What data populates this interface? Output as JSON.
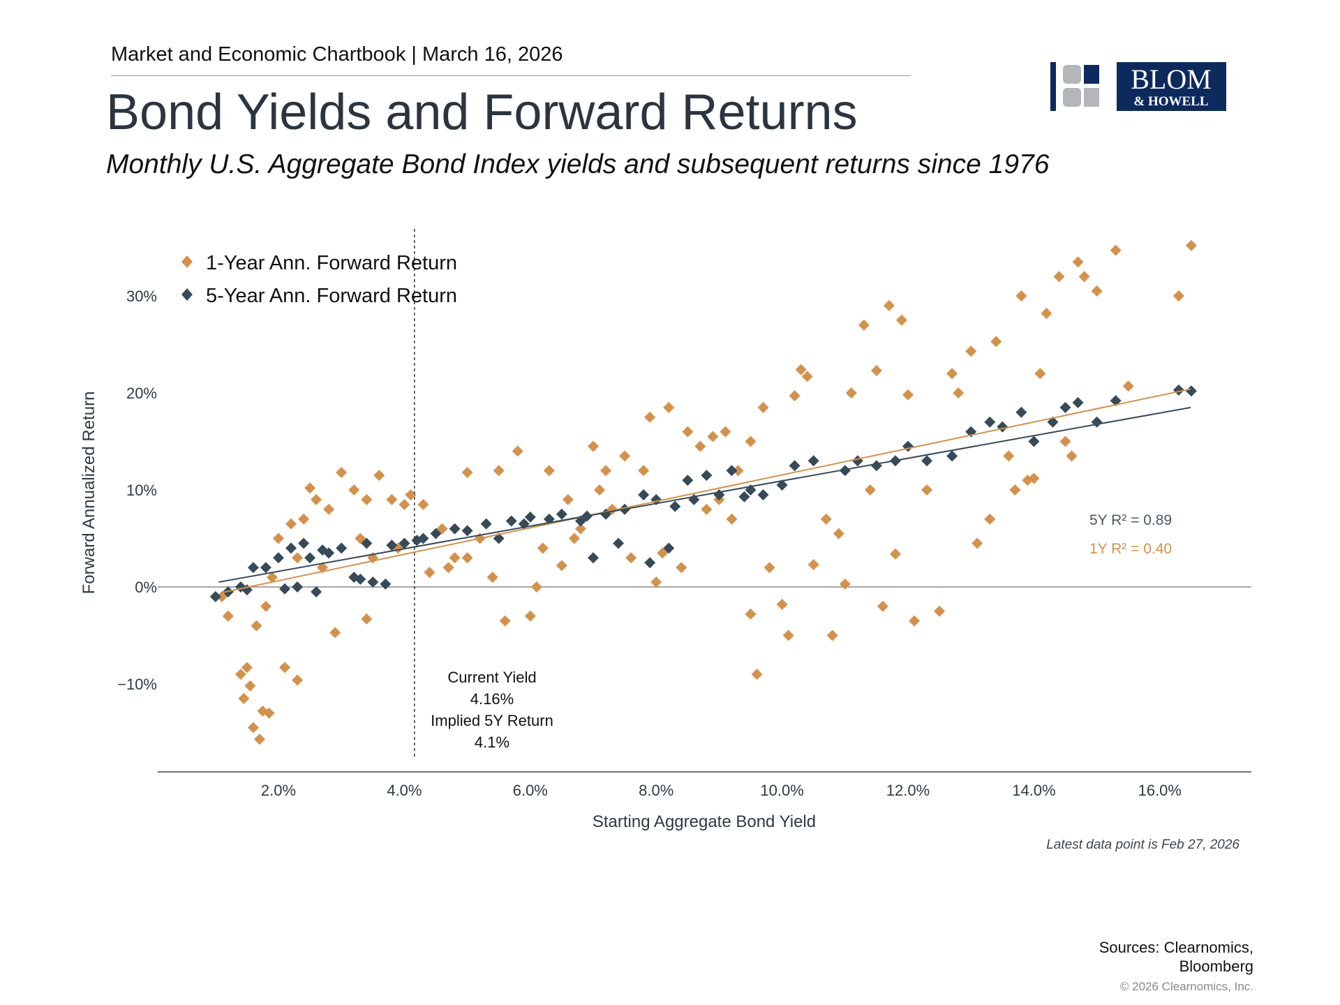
{
  "header": {
    "chartbook": "Market and Economic Chartbook | March 16, 2026",
    "title": "Bond Yields and Forward Returns",
    "subtitle": "Monthly U.S. Aggregate Bond Index yields and subsequent returns since 1976"
  },
  "logo": {
    "text_main": "BLOM",
    "text_sub": "& HOWELL",
    "color": "#0d2a5e"
  },
  "footer": {
    "latest": "Latest data point is Feb 27, 2026",
    "sources_line1": "Sources: Clearnomics,",
    "sources_line2": "Bloomberg",
    "copyright": "© 2026 Clearnomics, Inc."
  },
  "chart_data": {
    "type": "scatter",
    "title": "Bond Yields and Forward Returns",
    "xlabel": "Starting Aggregate Bond Yield",
    "ylabel": "Forward Annualized Return",
    "xlim": [
      0.08,
      17.5
    ],
    "ylim": [
      -19,
      37
    ],
    "x_ticks": [
      2,
      4,
      6,
      8,
      10,
      12,
      14,
      16
    ],
    "x_tick_labels": [
      "2.0%",
      "4.0%",
      "6.0%",
      "8.0%",
      "10.0%",
      "12.0%",
      "14.0%",
      "16.0%"
    ],
    "y_ticks": [
      30,
      20,
      10,
      0,
      -10
    ],
    "y_tick_labels": [
      "30%",
      "20%",
      "10%",
      "0%",
      "−10%"
    ],
    "legend_placement": "top-left",
    "colors": {
      "one_year": "#d4914a",
      "five_year": "#364a58",
      "zero_line": "#888888"
    },
    "series": [
      {
        "name": "1-Year Ann. Forward Return",
        "key": "one_year",
        "points": [
          [
            1.1,
            -1
          ],
          [
            1.2,
            -3
          ],
          [
            1.4,
            -9
          ],
          [
            1.45,
            -11.5
          ],
          [
            1.5,
            -8.3
          ],
          [
            1.55,
            -10.2
          ],
          [
            1.6,
            -14.5
          ],
          [
            1.65,
            -4
          ],
          [
            1.7,
            -15.7
          ],
          [
            1.75,
            -12.8
          ],
          [
            1.85,
            -13
          ],
          [
            1.8,
            -2
          ],
          [
            2.1,
            -8.3
          ],
          [
            2.3,
            -9.6
          ],
          [
            2.0,
            5
          ],
          [
            2.2,
            6.5
          ],
          [
            2.4,
            7
          ],
          [
            2.5,
            10.2
          ],
          [
            2.6,
            9
          ],
          [
            2.8,
            8
          ],
          [
            3.0,
            11.8
          ],
          [
            3.2,
            10
          ],
          [
            3.4,
            9
          ],
          [
            3.6,
            11.5
          ],
          [
            3.3,
            5
          ],
          [
            3.5,
            3
          ],
          [
            2.9,
            -4.7
          ],
          [
            3.4,
            -3.3
          ],
          [
            3.8,
            9
          ],
          [
            4.0,
            8.5
          ],
          [
            4.1,
            9.5
          ],
          [
            4.3,
            8.5
          ],
          [
            4.4,
            1.5
          ],
          [
            4.7,
            2
          ],
          [
            5.0,
            11.8
          ],
          [
            5.2,
            5
          ],
          [
            5.5,
            12
          ],
          [
            5.6,
            -3.5
          ],
          [
            5.8,
            14
          ],
          [
            6.0,
            -3
          ],
          [
            6.1,
            0
          ],
          [
            6.3,
            12
          ],
          [
            6.5,
            2.2
          ],
          [
            6.8,
            6
          ],
          [
            7.0,
            14.5
          ],
          [
            7.2,
            12
          ],
          [
            7.5,
            13.5
          ],
          [
            7.8,
            12
          ],
          [
            7.9,
            17.5
          ],
          [
            8.2,
            18.5
          ],
          [
            8.5,
            16
          ],
          [
            8.7,
            14.5
          ],
          [
            8.0,
            0.5
          ],
          [
            8.4,
            2
          ],
          [
            8.9,
            15.5
          ],
          [
            9.1,
            16
          ],
          [
            9.3,
            12
          ],
          [
            9.5,
            15
          ],
          [
            9.6,
            -9
          ],
          [
            9.7,
            18.5
          ],
          [
            9.8,
            2
          ],
          [
            9.5,
            -2.8
          ],
          [
            10.0,
            -1.8
          ],
          [
            10.1,
            -5
          ],
          [
            10.3,
            22.4
          ],
          [
            10.4,
            21.7
          ],
          [
            10.2,
            19.7
          ],
          [
            10.5,
            2.3
          ],
          [
            10.7,
            7
          ],
          [
            10.8,
            -5
          ],
          [
            10.9,
            5.5
          ],
          [
            11.0,
            0.3
          ],
          [
            11.1,
            20
          ],
          [
            11.3,
            27
          ],
          [
            11.4,
            10
          ],
          [
            11.5,
            22.3
          ],
          [
            11.6,
            -2
          ],
          [
            11.7,
            29
          ],
          [
            11.9,
            27.5
          ],
          [
            12.0,
            19.8
          ],
          [
            11.8,
            3.4
          ],
          [
            12.1,
            -3.5
          ],
          [
            12.3,
            10
          ],
          [
            12.5,
            -2.5
          ],
          [
            12.7,
            22
          ],
          [
            12.8,
            20
          ],
          [
            13.0,
            24.3
          ],
          [
            13.1,
            4.5
          ],
          [
            13.3,
            7
          ],
          [
            13.4,
            25.3
          ],
          [
            13.6,
            13.5
          ],
          [
            13.7,
            10
          ],
          [
            13.8,
            30
          ],
          [
            13.9,
            11
          ],
          [
            14.0,
            11.2
          ],
          [
            14.1,
            22
          ],
          [
            14.2,
            28.2
          ],
          [
            14.4,
            32
          ],
          [
            14.5,
            15
          ],
          [
            14.6,
            13.5
          ],
          [
            14.7,
            33.5
          ],
          [
            14.8,
            32
          ],
          [
            15.0,
            30.5
          ],
          [
            15.3,
            34.7
          ],
          [
            15.5,
            20.7
          ],
          [
            16.3,
            30
          ],
          [
            16.5,
            35.2
          ],
          [
            6.2,
            4
          ],
          [
            6.7,
            5
          ],
          [
            7.3,
            8
          ],
          [
            8.8,
            8
          ],
          [
            9.0,
            9
          ],
          [
            5.0,
            3
          ],
          [
            4.6,
            6
          ],
          [
            3.9,
            4
          ],
          [
            2.7,
            2
          ],
          [
            7.6,
            3
          ],
          [
            8.1,
            3.5
          ],
          [
            2.3,
            3
          ],
          [
            1.9,
            1
          ],
          [
            4.8,
            3
          ],
          [
            5.4,
            1
          ],
          [
            6.6,
            9
          ],
          [
            7.1,
            10
          ],
          [
            9.2,
            7
          ]
        ],
        "trendline": [
          [
            1.09,
            -0.6
          ],
          [
            16.49,
            20.4
          ]
        ],
        "r2_label": "1Y R² = 0.40"
      },
      {
        "name": "5-Year Ann. Forward Return",
        "key": "five_year",
        "points": [
          [
            1.0,
            -1
          ],
          [
            1.2,
            -0.5
          ],
          [
            1.4,
            0
          ],
          [
            1.6,
            2
          ],
          [
            1.8,
            2
          ],
          [
            2.0,
            3
          ],
          [
            2.2,
            4
          ],
          [
            2.4,
            4.5
          ],
          [
            2.5,
            3
          ],
          [
            2.3,
            0
          ],
          [
            2.6,
            -0.5
          ],
          [
            2.8,
            3.5
          ],
          [
            3.0,
            4
          ],
          [
            3.2,
            1
          ],
          [
            3.5,
            0.5
          ],
          [
            3.7,
            0.3
          ],
          [
            3.4,
            4.5
          ],
          [
            3.8,
            4.3
          ],
          [
            4.0,
            4.5
          ],
          [
            4.2,
            4.8
          ],
          [
            4.5,
            5.5
          ],
          [
            4.8,
            6
          ],
          [
            5.0,
            5.8
          ],
          [
            5.3,
            6.5
          ],
          [
            5.5,
            5
          ],
          [
            5.7,
            6.8
          ],
          [
            6.0,
            7.2
          ],
          [
            6.3,
            7
          ],
          [
            6.5,
            7.5
          ],
          [
            6.8,
            6.8
          ],
          [
            7.0,
            3
          ],
          [
            7.2,
            7.5
          ],
          [
            7.4,
            4.5
          ],
          [
            7.5,
            8
          ],
          [
            7.8,
            9.5
          ],
          [
            7.9,
            2.5
          ],
          [
            8.0,
            9
          ],
          [
            8.2,
            4
          ],
          [
            8.5,
            11
          ],
          [
            8.6,
            9
          ],
          [
            8.8,
            11.5
          ],
          [
            9.0,
            9.5
          ],
          [
            9.2,
            12
          ],
          [
            9.5,
            10
          ],
          [
            9.7,
            9.5
          ],
          [
            10.0,
            10.5
          ],
          [
            10.2,
            12.5
          ],
          [
            10.5,
            13
          ],
          [
            11.0,
            12
          ],
          [
            11.2,
            13
          ],
          [
            11.5,
            12.5
          ],
          [
            11.8,
            13
          ],
          [
            12.0,
            14.5
          ],
          [
            12.3,
            13
          ],
          [
            12.7,
            13.5
          ],
          [
            13.0,
            16
          ],
          [
            13.3,
            17
          ],
          [
            13.5,
            16.5
          ],
          [
            13.8,
            18
          ],
          [
            14.0,
            15
          ],
          [
            14.3,
            17
          ],
          [
            14.5,
            18.5
          ],
          [
            14.7,
            19
          ],
          [
            15.0,
            17
          ],
          [
            15.3,
            19.2
          ],
          [
            16.3,
            20.3
          ],
          [
            16.5,
            20.2
          ],
          [
            1.5,
            -0.3
          ],
          [
            2.1,
            -0.2
          ],
          [
            3.3,
            0.8
          ],
          [
            2.7,
            3.8
          ],
          [
            4.3,
            5
          ],
          [
            5.9,
            6.5
          ],
          [
            6.9,
            7.3
          ],
          [
            8.3,
            8.3
          ],
          [
            9.4,
            9.3
          ]
        ],
        "trendline": [
          [
            1.05,
            0.5
          ],
          [
            16.49,
            18.5
          ]
        ],
        "r2_label": "5Y R² = 0.89"
      }
    ],
    "annotations": {
      "current_yield_x": 4.16,
      "line1": "Current Yield",
      "line2": "4.16%",
      "line3": "Implied 5Y Return",
      "line4": "4.1%"
    }
  }
}
